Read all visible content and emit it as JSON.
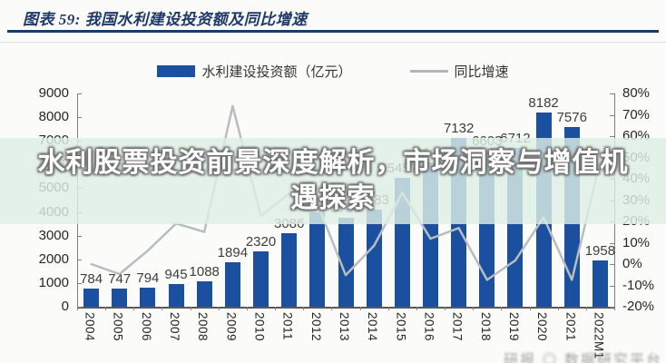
{
  "figure": {
    "title": "图表 59: 我国水利建设投资额及同比增速"
  },
  "legend": [
    {
      "label": "水利建设投资额（亿元）",
      "swatch": "bar",
      "color": "#1b4f9f"
    },
    {
      "label": "同比增速",
      "swatch": "line",
      "color": "#b3b6b8"
    }
  ],
  "watermark": {
    "line1": "水利股票投资前景深度解析，市场洞察与增值机",
    "line2": "遇探索"
  },
  "corner_watermark": "研报 ◎ 数据研究平台",
  "chart_data": {
    "type": "bar+line combo",
    "title": "我国水利建设投资额及同比增速",
    "legend_position": "top",
    "grid": false,
    "categories": [
      "2004",
      "2005",
      "2006",
      "2007",
      "2008",
      "2009",
      "2010",
      "2011",
      "2012",
      "2013",
      "2014",
      "2015",
      "2016",
      "2017",
      "2018",
      "2019",
      "2020",
      "2021",
      "2022M1"
    ],
    "series": [
      {
        "name": "水利建设投资额（亿元）",
        "type": "bar",
        "y_axis": "left",
        "color": "#1b4f9f",
        "values": [
          784,
          747,
          794,
          945,
          1088,
          1894,
          2320,
          3086,
          3964,
          3758,
          4083,
          5452,
          6100,
          7132,
          6603,
          6712,
          8182,
          7576,
          1958
        ],
        "data_labels": [
          "784",
          "747",
          "794",
          "945",
          "1088",
          "1894",
          "2320",
          "3086",
          "3964",
          "3758",
          "4083",
          "5452",
          "6100",
          "7132",
          "6603",
          "6712",
          "8182",
          "7576",
          "1958"
        ]
      },
      {
        "name": "同比增速",
        "type": "line",
        "y_axis": "right",
        "color": "#b9bdbf",
        "values_pct": [
          0,
          -4.7,
          6.3,
          19.0,
          15.1,
          74.1,
          22.5,
          33.0,
          28.4,
          -5.2,
          8.6,
          33.5,
          11.9,
          16.9,
          -7.4,
          1.7,
          21.9,
          -7.4,
          48
        ]
      }
    ],
    "left_axis": {
      "min": 0,
      "max": 9000,
      "step": 1000,
      "tick_labels": [
        "9000",
        "8000",
        "7000",
        "6000",
        "5000",
        "4000",
        "3000",
        "2000",
        "1000",
        "0"
      ]
    },
    "right_axis": {
      "min": -20,
      "max": 80,
      "step": 10,
      "tick_labels": [
        "80%",
        "70%",
        "60%",
        "50%",
        "40%",
        "30%",
        "20%",
        "10%",
        "0%",
        "-10%",
        "-20%"
      ]
    }
  }
}
